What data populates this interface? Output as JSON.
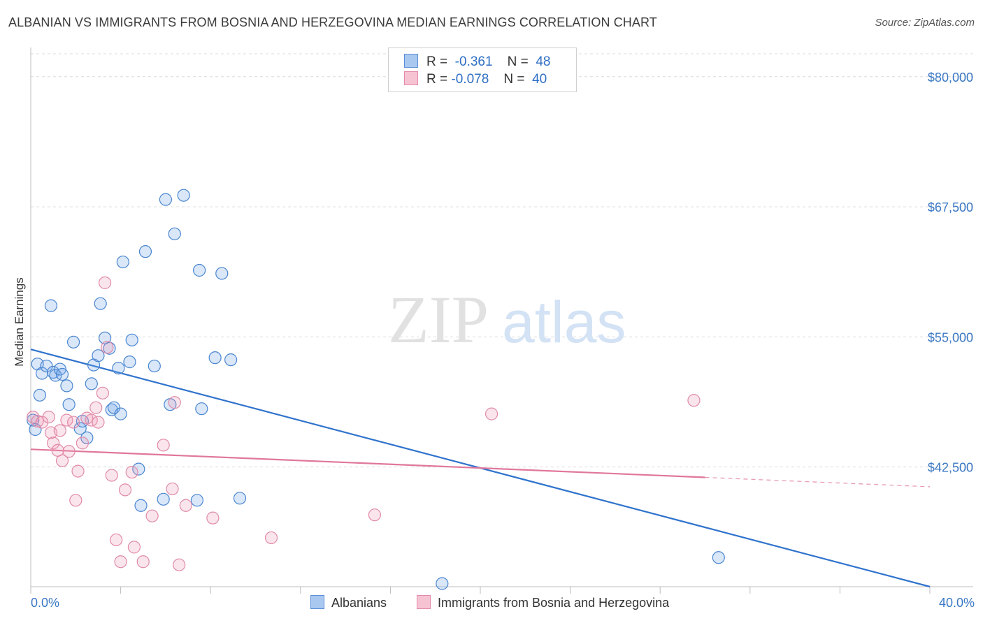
{
  "title": "ALBANIAN VS IMMIGRANTS FROM BOSNIA AND HERZEGOVINA MEDIAN EARNINGS CORRELATION CHART",
  "source": "Source: ZipAtlas.com",
  "watermark": {
    "zip": "ZIP",
    "atlas": "atlas"
  },
  "legend": {
    "rows": [
      {
        "r_label": "R =",
        "r_value": "-0.361",
        "n_label": "N =",
        "n_value": "48",
        "color": "#a9c8f0",
        "border": "#5b8fd6"
      },
      {
        "r_label": "R =",
        "r_value": "-0.078",
        "n_label": "N =",
        "n_value": "40",
        "color": "#f6c3d3",
        "border": "#e48aaa"
      }
    ]
  },
  "chart_data": {
    "type": "scatter",
    "title": "ALBANIAN VS IMMIGRANTS FROM BOSNIA AND HERZEGOVINA MEDIAN EARNINGS CORRELATION CHART",
    "xlabel": "",
    "ylabel": "Median Earnings",
    "xlim": [
      0,
      40
    ],
    "ylim": [
      31000,
      82000
    ],
    "x_tick_labels": [
      "0.0%",
      "40.0%"
    ],
    "y_ticks": [
      42500,
      55000,
      67500,
      80000
    ],
    "y_tick_labels": [
      "$42,500",
      "$55,000",
      "$67,500",
      "$80,000"
    ],
    "grid": true,
    "series": [
      {
        "name": "Albanians",
        "color": "#4a86d0",
        "points": [
          [
            0.3,
            52400
          ],
          [
            0.4,
            49400
          ],
          [
            0.5,
            51500
          ],
          [
            0.7,
            52200
          ],
          [
            0.9,
            58000
          ],
          [
            1.0,
            51600
          ],
          [
            1.1,
            51300
          ],
          [
            1.3,
            51900
          ],
          [
            1.4,
            51400
          ],
          [
            1.6,
            50300
          ],
          [
            1.7,
            48500
          ],
          [
            1.9,
            54500
          ],
          [
            2.2,
            46200
          ],
          [
            2.3,
            46900
          ],
          [
            2.5,
            45300
          ],
          [
            2.7,
            50500
          ],
          [
            2.8,
            52300
          ],
          [
            3.0,
            53200
          ],
          [
            3.1,
            58200
          ],
          [
            3.3,
            54900
          ],
          [
            3.5,
            53900
          ],
          [
            3.6,
            48000
          ],
          [
            3.7,
            48200
          ],
          [
            3.9,
            52000
          ],
          [
            4.0,
            47600
          ],
          [
            4.1,
            62200
          ],
          [
            4.4,
            52600
          ],
          [
            4.5,
            54700
          ],
          [
            4.8,
            42300
          ],
          [
            4.9,
            38800
          ],
          [
            5.1,
            63200
          ],
          [
            5.5,
            52200
          ],
          [
            5.9,
            39400
          ],
          [
            6.0,
            68200
          ],
          [
            6.2,
            48500
          ],
          [
            6.4,
            64900
          ],
          [
            6.8,
            68600
          ],
          [
            7.4,
            39300
          ],
          [
            7.5,
            61400
          ],
          [
            7.6,
            48100
          ],
          [
            8.2,
            53000
          ],
          [
            8.5,
            61100
          ],
          [
            8.9,
            52800
          ],
          [
            9.3,
            39500
          ],
          [
            18.3,
            31300
          ],
          [
            30.6,
            33800
          ],
          [
            0.2,
            46100
          ],
          [
            0.1,
            47000
          ]
        ],
        "trend": {
          "x": [
            0,
            40
          ],
          "y": [
            53800,
            31000
          ]
        }
      },
      {
        "name": "Immigrants from Bosnia and Herzegovina",
        "color": "#e08aa8",
        "points": [
          [
            0.1,
            47300
          ],
          [
            0.3,
            46900
          ],
          [
            0.5,
            46800
          ],
          [
            0.8,
            47300
          ],
          [
            0.9,
            45800
          ],
          [
            1.0,
            44800
          ],
          [
            1.2,
            44100
          ],
          [
            1.3,
            46000
          ],
          [
            1.4,
            43100
          ],
          [
            1.6,
            47000
          ],
          [
            1.7,
            44000
          ],
          [
            1.9,
            46800
          ],
          [
            2.0,
            39300
          ],
          [
            2.1,
            42100
          ],
          [
            2.3,
            44800
          ],
          [
            2.5,
            47200
          ],
          [
            2.7,
            47000
          ],
          [
            2.9,
            48200
          ],
          [
            3.0,
            46800
          ],
          [
            3.2,
            49600
          ],
          [
            3.3,
            60200
          ],
          [
            3.4,
            54000
          ],
          [
            3.6,
            41700
          ],
          [
            3.8,
            35500
          ],
          [
            4.0,
            33400
          ],
          [
            4.2,
            40300
          ],
          [
            4.5,
            42000
          ],
          [
            4.6,
            34800
          ],
          [
            5.0,
            33400
          ],
          [
            5.4,
            37800
          ],
          [
            5.9,
            44600
          ],
          [
            6.3,
            40400
          ],
          [
            6.4,
            48700
          ],
          [
            6.6,
            33100
          ],
          [
            6.9,
            38800
          ],
          [
            8.1,
            37600
          ],
          [
            10.7,
            35700
          ],
          [
            15.3,
            37900
          ],
          [
            20.5,
            47600
          ],
          [
            29.5,
            48900
          ]
        ],
        "trend": {
          "x": [
            0,
            30
          ],
          "y": [
            44200,
            41500
          ]
        },
        "trend_dashed_extension": {
          "x": [
            30,
            40
          ],
          "y": [
            41500,
            40600
          ]
        }
      }
    ]
  },
  "bottom_legend": {
    "items": [
      {
        "label": "Albanians",
        "color": "#a9c8f0",
        "border": "#5b8fd6"
      },
      {
        "label": "Immigrants from Bosnia and Herzegovina",
        "color": "#f6c3d3",
        "border": "#e48aaa"
      }
    ]
  }
}
